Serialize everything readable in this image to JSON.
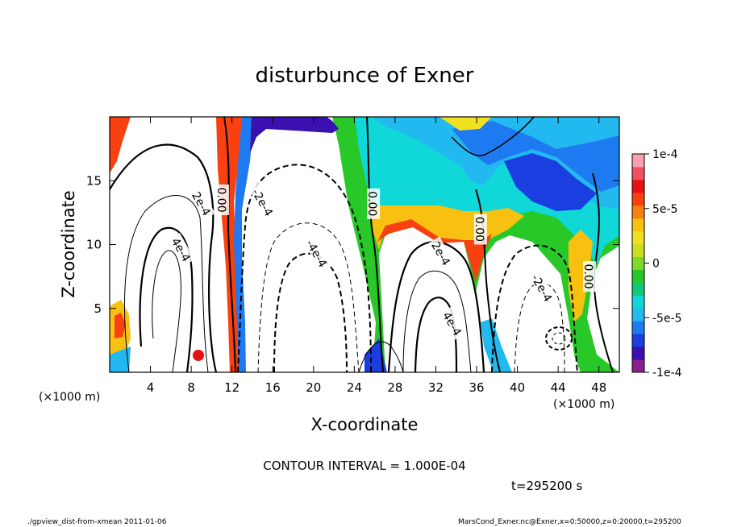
{
  "chart_data": {
    "type": "heatmap",
    "title": "disturbunce of Exner",
    "xlabel": "X-coordinate",
    "ylabel": "Z-coordinate",
    "x_unit": "(×1000 m)",
    "y_unit": "(×1000 m)",
    "x_ticks": [
      4,
      8,
      12,
      16,
      20,
      24,
      28,
      32,
      36,
      40,
      44,
      48
    ],
    "y_ticks": [
      5,
      10,
      15
    ],
    "xlim": [
      0,
      50
    ],
    "ylim": [
      0,
      20
    ],
    "colorbar": {
      "ticks": [
        "1e-4",
        "5e-5",
        "0",
        "-5e-5",
        "-1e-4"
      ],
      "tick_values": [
        0.0001,
        5e-05,
        0,
        -5e-05,
        -0.0001
      ],
      "range": [
        -0.0001,
        0.0001
      ],
      "colors": [
        "#8a2090",
        "#3a10b0",
        "#1a3ee0",
        "#1e7af0",
        "#22b8f0",
        "#10d8d8",
        "#10c878",
        "#28c828",
        "#80d828",
        "#c8e020",
        "#f0e020",
        "#f8c010",
        "#f88010",
        "#f84010",
        "#e81010",
        "#f05060",
        "#f8a0b0"
      ]
    },
    "contour_labels": [
      {
        "text": "0.00",
        "x": 11,
        "z": 13.5
      },
      {
        "text": "0.00",
        "x": 25.8,
        "z": 13.2
      },
      {
        "text": "0.00",
        "x": 36.3,
        "z": 11.2
      },
      {
        "text": "0.00",
        "x": 47,
        "z": 7.5
      },
      {
        "text": "2e-4",
        "x": 9,
        "z": 13.2
      },
      {
        "text": "4e-4",
        "x": 7,
        "z": 9.6
      },
      {
        "text": "-2e-4",
        "x": 15,
        "z": 13.3
      },
      {
        "text": "-4e-4",
        "x": 20.3,
        "z": 9.3
      },
      {
        "text": "2e-4",
        "x": 32.5,
        "z": 9.3
      },
      {
        "text": "4e-4",
        "x": 33.6,
        "z": 3.8
      },
      {
        "text": "-2e-4",
        "x": 42.4,
        "z": 6.6
      }
    ],
    "contour_interval": "CONTOUR INTERVAL = 1.000E-04",
    "time_label": "t=295200 s",
    "footer_left": "./gpview_dist-from-xmean   2011-01-06",
    "footer_right": "MarsCond_Exner.nc@Exner,x=0:50000,z=0:20000,t=295200"
  }
}
